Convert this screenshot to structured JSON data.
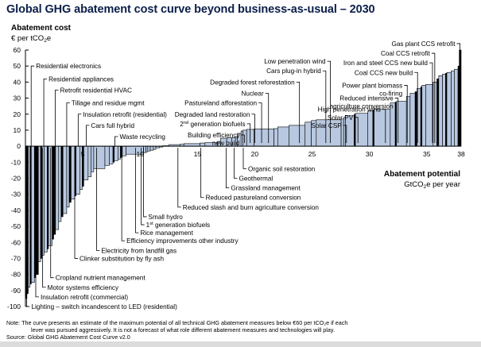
{
  "chart_data": {
    "type": "bar",
    "subtype": "marginal-abatement-cost-curve (variable-width bars)",
    "title": "Global GHG abatement cost curve beyond business-as-usual – 2030",
    "ylabel": "Abatement cost",
    "yunit": "€ per tCO2e",
    "xlabel": "Abatement potential",
    "xunit": "GtCO2e per year",
    "ylim": [
      -100,
      60
    ],
    "xlim": [
      0,
      38
    ],
    "yticks": [
      60,
      50,
      40,
      30,
      20,
      10,
      0,
      -10,
      -20,
      -30,
      -40,
      -50,
      -60,
      -70,
      -80,
      -90,
      -100
    ],
    "xticks": [
      5,
      10,
      15,
      20,
      25,
      30,
      35,
      38
    ],
    "grid": false,
    "bar_fill": "#b8c8e0",
    "bar_dark_fill": "#000000",
    "bars": [
      {
        "w": 0.12,
        "c": -95,
        "dark": true
      },
      {
        "w": 0.1,
        "c": -92,
        "dark": true
      },
      {
        "w": 0.15,
        "c": -88,
        "dark": false
      },
      {
        "w": 0.1,
        "c": -86,
        "dark": true
      },
      {
        "w": 0.25,
        "c": -85,
        "dark": false
      },
      {
        "w": 0.12,
        "c": -82,
        "dark": true
      },
      {
        "w": 0.2,
        "c": -80,
        "dark": true
      },
      {
        "w": 0.18,
        "c": -72,
        "dark": false
      },
      {
        "w": 0.1,
        "c": -70,
        "dark": true
      },
      {
        "w": 0.18,
        "c": -68,
        "dark": false
      },
      {
        "w": 0.25,
        "c": -66,
        "dark": false
      },
      {
        "w": 0.1,
        "c": -64,
        "dark": true
      },
      {
        "w": 0.3,
        "c": -62,
        "dark": false
      },
      {
        "w": 0.12,
        "c": -58,
        "dark": true
      },
      {
        "w": 0.15,
        "c": -55,
        "dark": true
      },
      {
        "w": 0.25,
        "c": -52,
        "dark": false
      },
      {
        "w": 0.2,
        "c": -47,
        "dark": false
      },
      {
        "w": 0.15,
        "c": -44,
        "dark": true
      },
      {
        "w": 0.3,
        "c": -42,
        "dark": false
      },
      {
        "w": 0.2,
        "c": -38,
        "dark": false
      },
      {
        "w": 0.15,
        "c": -35,
        "dark": true
      },
      {
        "w": 0.3,
        "c": -33,
        "dark": false
      },
      {
        "w": 0.1,
        "c": -31,
        "dark": true
      },
      {
        "w": 0.3,
        "c": -30,
        "dark": false
      },
      {
        "w": 0.2,
        "c": -27,
        "dark": false
      },
      {
        "w": 0.12,
        "c": -25,
        "dark": true
      },
      {
        "w": 0.35,
        "c": -21,
        "dark": false
      },
      {
        "w": 0.25,
        "c": -19,
        "dark": false
      },
      {
        "w": 0.2,
        "c": -16,
        "dark": false
      },
      {
        "w": 0.9,
        "c": -14,
        "dark": false
      },
      {
        "w": 0.35,
        "c": -12,
        "dark": false
      },
      {
        "w": 0.3,
        "c": -11,
        "dark": false
      },
      {
        "w": 0.1,
        "c": -10,
        "dark": true
      },
      {
        "w": 0.3,
        "c": -9,
        "dark": false
      },
      {
        "w": 0.2,
        "c": -8,
        "dark": false
      },
      {
        "w": 0.15,
        "c": -7,
        "dark": true
      },
      {
        "w": 0.3,
        "c": -6,
        "dark": false
      },
      {
        "w": 1.4,
        "c": -5,
        "dark": false
      },
      {
        "w": 0.2,
        "c": -4,
        "dark": false
      },
      {
        "w": 0.15,
        "c": -3.5,
        "dark": false
      },
      {
        "w": 0.2,
        "c": -3,
        "dark": false
      },
      {
        "w": 0.25,
        "c": -2.5,
        "dark": false
      },
      {
        "w": 0.2,
        "c": -2,
        "dark": false
      },
      {
        "w": 0.3,
        "c": -1,
        "dark": false
      },
      {
        "w": 0.25,
        "c": -0.5,
        "dark": false
      },
      {
        "w": 0.5,
        "c": 0.3,
        "dark": false
      },
      {
        "w": 0.9,
        "c": 1,
        "dark": false
      },
      {
        "w": 0.3,
        "c": 1.2,
        "dark": false
      },
      {
        "w": 1.3,
        "c": 1.6,
        "dark": false
      },
      {
        "w": 0.4,
        "c": 2,
        "dark": false
      },
      {
        "w": 1.0,
        "c": 2.2,
        "dark": false
      },
      {
        "w": 0.25,
        "c": 3,
        "dark": false
      },
      {
        "w": 0.5,
        "c": 5,
        "dark": false
      },
      {
        "w": 0.4,
        "c": 5.2,
        "dark": false
      },
      {
        "w": 0.3,
        "c": 5.3,
        "dark": false
      },
      {
        "w": 0.15,
        "c": 6,
        "dark": false
      },
      {
        "w": 0.3,
        "c": 8,
        "dark": false
      },
      {
        "w": 0.15,
        "c": 9.5,
        "dark": false
      },
      {
        "w": 0.3,
        "c": 10,
        "dark": false
      },
      {
        "w": 0.6,
        "c": 10.5,
        "dark": false
      },
      {
        "w": 1.6,
        "c": 10.8,
        "dark": false
      },
      {
        "w": 0.3,
        "c": 11,
        "dark": false
      },
      {
        "w": 0.9,
        "c": 12,
        "dark": false
      },
      {
        "w": 1.3,
        "c": 13,
        "dark": false
      },
      {
        "w": 0.5,
        "c": 15,
        "dark": false
      },
      {
        "w": 0.4,
        "c": 16,
        "dark": false
      },
      {
        "w": 2.0,
        "c": 16.5,
        "dark": false
      },
      {
        "w": 0.2,
        "c": 17,
        "dark": false
      },
      {
        "w": 0.15,
        "c": 18,
        "dark": false
      },
      {
        "w": 0.7,
        "c": 19,
        "dark": false
      },
      {
        "w": 0.1,
        "c": 20,
        "dark": true
      },
      {
        "w": 1.0,
        "c": 20.5,
        "dark": false
      },
      {
        "w": 0.4,
        "c": 22,
        "dark": false
      },
      {
        "w": 0.1,
        "c": 22.5,
        "dark": true
      },
      {
        "w": 1.3,
        "c": 23,
        "dark": false
      },
      {
        "w": 0.4,
        "c": 27,
        "dark": false
      },
      {
        "w": 0.1,
        "c": 27.5,
        "dark": true
      },
      {
        "w": 0.8,
        "c": 28,
        "dark": false
      },
      {
        "w": 0.3,
        "c": 31,
        "dark": false
      },
      {
        "w": 0.4,
        "c": 33,
        "dark": false
      },
      {
        "w": 0.15,
        "c": 34,
        "dark": true
      },
      {
        "w": 0.3,
        "c": 36,
        "dark": false
      },
      {
        "w": 0.1,
        "c": 37,
        "dark": true
      },
      {
        "w": 0.3,
        "c": 38,
        "dark": false
      },
      {
        "w": 0.6,
        "c": 38.5,
        "dark": false
      },
      {
        "w": 0.3,
        "c": 40,
        "dark": false
      },
      {
        "w": 0.15,
        "c": 42,
        "dark": true
      },
      {
        "w": 0.3,
        "c": 44,
        "dark": false
      },
      {
        "w": 0.25,
        "c": 45,
        "dark": false
      },
      {
        "w": 0.1,
        "c": 45.5,
        "dark": true
      },
      {
        "w": 0.35,
        "c": 46,
        "dark": false
      },
      {
        "w": 0.25,
        "c": 47,
        "dark": false
      },
      {
        "w": 0.3,
        "c": 48,
        "dark": false
      },
      {
        "w": 0.1,
        "c": 50,
        "dark": true
      },
      {
        "w": 0.15,
        "c": 60,
        "dark": true
      }
    ],
    "labels_below": [
      {
        "text": "Lighting – switch incandescent to LED (residential)",
        "x": 0.1,
        "y": -100
      },
      {
        "text": "Insulation retrofit (commercial)",
        "x": 0.9,
        "y": -94
      },
      {
        "text": "Motor systems efficiency",
        "x": 1.5,
        "y": -88
      },
      {
        "text": "Cropland nutrient management",
        "x": 2.2,
        "y": -82
      },
      {
        "text": "Clinker substitution by fly ash",
        "x": 4.3,
        "y": -70
      },
      {
        "text": "Electricity from landfill gas",
        "x": 6.2,
        "y": -65
      },
      {
        "text": "Efficiency improvements other industry",
        "x": 8.4,
        "y": -59
      },
      {
        "text": "Rice management",
        "x": 9.6,
        "y": -54
      },
      {
        "text": "1st generation biofuels",
        "x": 10.1,
        "y": -49
      },
      {
        "text": "Small hydro",
        "x": 10.3,
        "y": -44
      },
      {
        "text": "Reduced slash and burn agriculture conversion",
        "x": 13.3,
        "y": -38
      },
      {
        "text": "Reduced pastureland conversion",
        "x": 15.3,
        "y": -32
      },
      {
        "text": "Grassland management",
        "x": 17.5,
        "y": -26
      },
      {
        "text": "Geothermal",
        "x": 18.2,
        "y": -20
      },
      {
        "text": "Organic soil restoration",
        "x": 19.0,
        "y": -14
      }
    ],
    "labels_above_left": [
      {
        "text": "Residential electronics",
        "x": 0.5,
        "y": 50
      },
      {
        "text": "Residential appliances",
        "x": 1.6,
        "y": 42
      },
      {
        "text": "Retrofit residential HVAC",
        "x": 2.6,
        "y": 35
      },
      {
        "text": "Tillage and residue mgmt",
        "x": 3.6,
        "y": 27
      },
      {
        "text": "Insulation retrofit (residential)",
        "x": 4.6,
        "y": 20
      },
      {
        "text": "Cars full hybrid",
        "x": 5.3,
        "y": 13
      },
      {
        "text": "Waste recycling",
        "x": 7.8,
        "y": 6
      }
    ],
    "labels_above_right": [
      {
        "text": "Low penetration wind",
        "x": 26.6,
        "y": 53
      },
      {
        "text": "Cars plug-in hybrid",
        "x": 26.2,
        "y": 47
      },
      {
        "text": "Degraded forest reforestation",
        "x": 23.9,
        "y": 40
      },
      {
        "text": "Nuclear",
        "x": 21.2,
        "y": 33
      },
      {
        "text": "Pastureland afforestation",
        "x": 20.6,
        "y": 27
      },
      {
        "text": "Degraded land restoration",
        "x": 20.0,
        "y": 20
      },
      {
        "text": "2nd generation biofuels",
        "x": 19.6,
        "y": 14
      },
      {
        "text": "Building efficiency new build",
        "x": 19.1,
        "y": 7
      },
      {
        "text": "Gas plant CCS retrofit",
        "x": 37.9,
        "y": 64
      },
      {
        "text": "Coal CCS retrofit",
        "x": 35.7,
        "y": 58
      },
      {
        "text": "Iron and steel CCS new build",
        "x": 35.5,
        "y": 52
      },
      {
        "text": "Coal CCS new build",
        "x": 34.2,
        "y": 46
      },
      {
        "text": "Power plant biomass co-firing",
        "x": 33.3,
        "y": 38
      },
      {
        "text": "Reduced intensive agriculture conversion",
        "x": 32.5,
        "y": 30
      },
      {
        "text": "High penetration wind",
        "x": 31.4,
        "y": 23
      },
      {
        "text": "Solar PV",
        "x": 29.0,
        "y": 18
      },
      {
        "text": "Solar CSP",
        "x": 28.0,
        "y": 13
      }
    ]
  },
  "note_label": "Note:",
  "note_line1": "The curve presents an estimate of the maximum potential of all technical GHG abatement measures below €60 per tCO₂e if each",
  "note_line2": "lever was pursued aggressively. It is not a forecast of what role different abatement measures and technologies will play.",
  "source": "Source: Global GHG Abatement Cost Curve v2.0"
}
